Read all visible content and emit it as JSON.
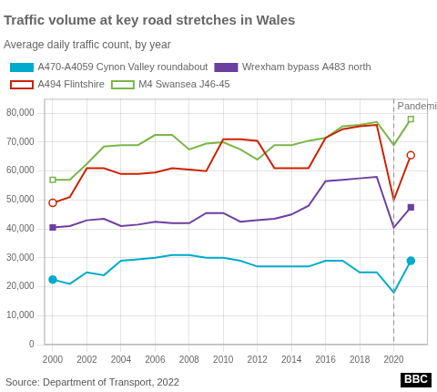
{
  "chart_data": {
    "type": "line",
    "title": "Traffic volume at key road stretches in Wales",
    "subtitle": "Average daily traffic count, by year",
    "source": "Source: Department of Transport, 2022",
    "credit": "BBC",
    "annotations": [
      {
        "x": 2020,
        "text": "Pandemic",
        "line_style": "dashed"
      }
    ],
    "x": [
      2000,
      2001,
      2002,
      2003,
      2004,
      2005,
      2006,
      2007,
      2008,
      2009,
      2010,
      2011,
      2012,
      2013,
      2014,
      2015,
      2016,
      2017,
      2018,
      2019,
      2020,
      2021
    ],
    "series": [
      {
        "name": "A470-A4059 Cynon Valley roundabout",
        "color": "#00aacc",
        "marker": "circle",
        "values": [
          22500,
          21000,
          25000,
          24000,
          29000,
          29500,
          30000,
          31000,
          31000,
          30000,
          30000,
          29000,
          27000,
          27000,
          27000,
          27000,
          29000,
          29000,
          25000,
          25000,
          18000,
          29000
        ]
      },
      {
        "name": "Wrexham bypass A483 north",
        "color": "#6b3fa0",
        "marker": "square",
        "values": [
          40500,
          41000,
          43000,
          43500,
          41000,
          41500,
          42500,
          42000,
          42000,
          45500,
          45500,
          42500,
          43000,
          43500,
          45000,
          48000,
          56500,
          57000,
          57500,
          58000,
          40500,
          47500
        ]
      },
      {
        "name": "A494 Flintshire",
        "color": "#cc2200",
        "marker": "circle-open",
        "values": [
          49000,
          51000,
          61000,
          61000,
          59000,
          59000,
          59500,
          61000,
          60500,
          60000,
          71000,
          71000,
          70500,
          61000,
          61000,
          61000,
          71500,
          74500,
          75500,
          76000,
          50000,
          65500
        ]
      },
      {
        "name": "M4 Swansea J46-45",
        "color": "#7ab648",
        "marker": "square-open",
        "values": [
          57000,
          57000,
          62500,
          68500,
          69000,
          69000,
          72500,
          72500,
          67500,
          69500,
          70000,
          67500,
          64000,
          69000,
          69000,
          70500,
          71500,
          75500,
          76000,
          77000,
          69000,
          78000
        ]
      }
    ],
    "xlim": [
      1999.5,
      2022
    ],
    "xticks": [
      2000,
      2002,
      2004,
      2006,
      2008,
      2010,
      2012,
      2014,
      2016,
      2018,
      2020
    ],
    "ylim": [
      0,
      85000
    ],
    "yticks": [
      0,
      {
        "value": 10000,
        "label": "10,000"
      },
      {
        "value": 20000,
        "label": "20,000"
      },
      {
        "value": 30000,
        "label": "30,000"
      },
      {
        "value": 40000,
        "label": "40,000"
      },
      {
        "value": 50000,
        "label": "50,000"
      },
      {
        "value": 60000,
        "label": "60,000"
      },
      {
        "value": 70000,
        "label": "70,000"
      },
      {
        "value": 80000,
        "label": "80,000"
      }
    ],
    "grid": true,
    "legend": "top"
  }
}
